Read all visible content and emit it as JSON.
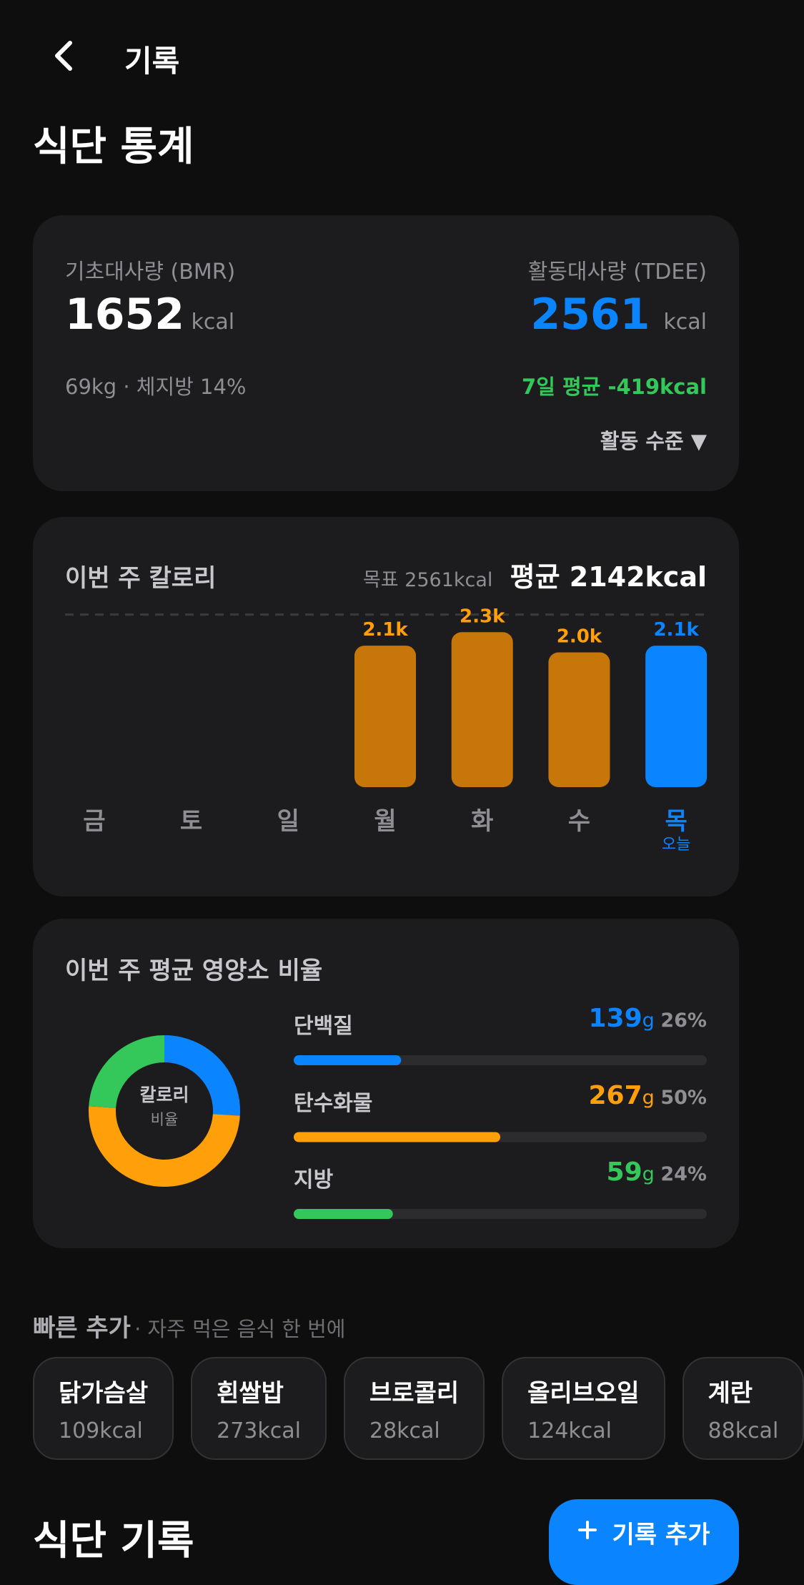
{
  "header": {
    "title": "기록"
  },
  "page_title": "식단 통계",
  "metabolism": {
    "bmr_label": "기초대사량 (BMR)",
    "bmr": 1652,
    "bmr_unit": "kcal",
    "tdee_label": "활동대사량 (TDEE)",
    "tdee": 2561,
    "tdee_unit": "kcal",
    "body": "69kg · 체지방 14%",
    "weekly_average": "7일 평균 -419kcal",
    "activity_button": "활동 수준 ▼"
  },
  "weekly_chart": {
    "type": "bar",
    "title": "이번 주 칼로리",
    "target_label": "목표 2561kcal",
    "target": 2561,
    "average_label": "평균 2142kcal",
    "categories": [
      "금",
      "토",
      "일",
      "월",
      "화",
      "수",
      "목"
    ],
    "values": [
      null,
      null,
      null,
      2100,
      2300,
      2000,
      2100
    ],
    "value_labels": [
      null,
      null,
      null,
      "2.1k",
      "2.3k",
      "2.0k",
      "2.1k"
    ],
    "ylim": [
      0,
      2600
    ],
    "color": "#c7770a",
    "label_color": "#ff9f0a",
    "axis_color": "#8e8e93",
    "highlight": 6,
    "highlight_color": "#0a84ff",
    "highlight_label": "오늘"
  },
  "macros": {
    "type": "donut",
    "title": "이번 주 평균 영양소 비율",
    "donut_title": "칼로리",
    "donut_subtitle": "비율",
    "items": [
      {
        "name": "단백질",
        "grams": 139,
        "unit": "g",
        "percent": 26,
        "percent_label": "26%",
        "color": "#0a84ff"
      },
      {
        "name": "탄수화물",
        "grams": 267,
        "unit": "g",
        "percent": 50,
        "percent_label": "50%",
        "color": "#ff9f0a"
      },
      {
        "name": "지방",
        "grams": 59,
        "unit": "g",
        "percent": 24,
        "percent_label": "24%",
        "color": "#34c759"
      }
    ]
  },
  "quick_add": {
    "title": "빠른 추가",
    "subtitle": "· 자주 먹은 음식 한 번에",
    "items": [
      {
        "name": "닭가슴살",
        "kcal": "109kcal"
      },
      {
        "name": "흰쌀밥",
        "kcal": "273kcal"
      },
      {
        "name": "브로콜리",
        "kcal": "28kcal"
      },
      {
        "name": "올리브오일",
        "kcal": "124kcal"
      },
      {
        "name": "계란",
        "kcal": "88kcal"
      }
    ]
  },
  "log": {
    "title": "식단 기록",
    "add_button": "기록 추가"
  }
}
